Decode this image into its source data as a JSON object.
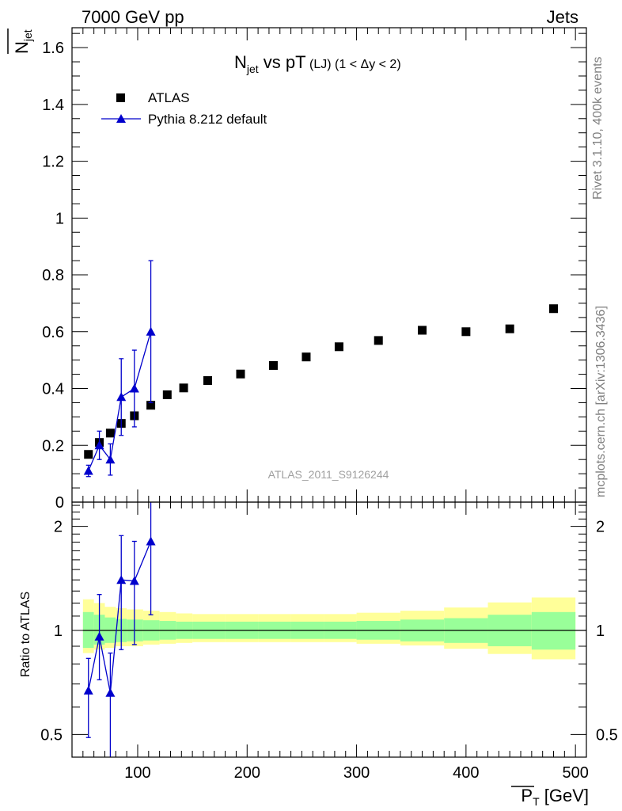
{
  "header": {
    "left": "7000 GeV pp",
    "right": "Jets"
  },
  "side_labels": {
    "rivet": "Rivet 3.1.10,  400k events",
    "mcplots": "mcplots.cern.ch [arXiv:1306.3436]"
  },
  "watermark": "ATLAS_2011_S9126244",
  "colors": {
    "data": "#000000",
    "mc": "#0000cc",
    "band_inner": "#99ff99",
    "band_outer": "#ffff99"
  },
  "chart_data": [
    {
      "type": "scatter",
      "title": "N_jet vs pT (LJ) (1 < Δy < 2)",
      "title_parts": {
        "main": "N",
        "sub": "jet",
        "rest": " vs pT",
        "small": " (LJ) (1 < Δy < 2)"
      },
      "ylabel_parts": {
        "main": "N",
        "sub": "jet"
      },
      "xlim": [
        40,
        510
      ],
      "ylim": [
        0,
        1.67
      ],
      "yticks": [
        0,
        0.2,
        0.4,
        0.6,
        0.8,
        1,
        1.2,
        1.4,
        1.6
      ],
      "ytick_labels": [
        "0",
        "0.2",
        "0.4",
        "0.6",
        "0.8",
        "1",
        "1.2",
        "1.4",
        "1.6"
      ],
      "legend": [
        "ATLAS",
        "Pythia 8.212 default"
      ],
      "series": [
        {
          "name": "ATLAS",
          "marker": "square",
          "x": [
            55,
            65,
            75,
            85,
            97,
            112,
            127,
            142,
            164,
            194,
            224,
            254,
            284,
            320,
            360,
            400,
            440,
            480
          ],
          "y": [
            0.168,
            0.21,
            0.243,
            0.277,
            0.304,
            0.341,
            0.378,
            0.402,
            0.428,
            0.451,
            0.481,
            0.511,
            0.547,
            0.569,
            0.605,
            0.6,
            0.61,
            0.681
          ]
        },
        {
          "name": "Pythia 8.212 default",
          "marker": "triangle",
          "x": [
            55,
            65,
            75,
            85,
            97,
            112
          ],
          "y": [
            0.11,
            0.2,
            0.15,
            0.37,
            0.4,
            0.6
          ],
          "err_low": [
            0.02,
            0.05,
            0.055,
            0.135,
            0.135,
            0.25
          ],
          "err_high": [
            0.02,
            0.05,
            0.055,
            0.135,
            0.135,
            0.25
          ]
        }
      ]
    },
    {
      "type": "scatter",
      "subtype": "ratio",
      "ylabel": "Ratio to ATLAS",
      "xlabel": "P_T [GeV]",
      "xlabel_parts": {
        "main": "P",
        "sub": "T",
        "rest": " [GeV]"
      },
      "xlim": [
        40,
        510
      ],
      "ylim": [
        0.43,
        2.35
      ],
      "yscale": "log",
      "yticks": [
        0.5,
        1,
        2
      ],
      "ytick_labels": [
        "0.5",
        "1",
        "2"
      ],
      "xticks": [
        100,
        200,
        300,
        400,
        500
      ],
      "xtick_labels": [
        "100",
        "200",
        "300",
        "400",
        "500"
      ],
      "bands": {
        "edges": [
          50,
          60,
          70,
          80,
          90,
          105,
          120,
          135,
          150,
          180,
          210,
          240,
          270,
          300,
          340,
          380,
          420,
          460,
          500
        ],
        "inner": [
          [
            0.89,
            1.13
          ],
          [
            0.91,
            1.11
          ],
          [
            0.92,
            1.09
          ],
          [
            0.925,
            1.08
          ],
          [
            0.93,
            1.075
          ],
          [
            0.935,
            1.07
          ],
          [
            0.94,
            1.065
          ],
          [
            0.945,
            1.06
          ],
          [
            0.945,
            1.06
          ],
          [
            0.945,
            1.06
          ],
          [
            0.945,
            1.06
          ],
          [
            0.945,
            1.06
          ],
          [
            0.945,
            1.06
          ],
          [
            0.94,
            1.065
          ],
          [
            0.93,
            1.075
          ],
          [
            0.92,
            1.085
          ],
          [
            0.9,
            1.11
          ],
          [
            0.88,
            1.13
          ]
        ],
        "outer": [
          [
            0.86,
            1.23
          ],
          [
            0.88,
            1.2
          ],
          [
            0.89,
            1.17
          ],
          [
            0.9,
            1.16
          ],
          [
            0.9,
            1.15
          ],
          [
            0.91,
            1.14
          ],
          [
            0.915,
            1.13
          ],
          [
            0.92,
            1.12
          ],
          [
            0.925,
            1.115
          ],
          [
            0.925,
            1.115
          ],
          [
            0.925,
            1.115
          ],
          [
            0.925,
            1.115
          ],
          [
            0.925,
            1.115
          ],
          [
            0.915,
            1.125
          ],
          [
            0.905,
            1.14
          ],
          [
            0.885,
            1.165
          ],
          [
            0.855,
            1.205
          ],
          [
            0.825,
            1.245
          ]
        ]
      },
      "series": [
        {
          "name": "Pythia 8.212 default",
          "marker": "triangle",
          "x": [
            55,
            65,
            75,
            85,
            97,
            112
          ],
          "y": [
            0.67,
            0.96,
            0.66,
            1.4,
            1.39,
            1.81
          ],
          "err_low": [
            0.18,
            0.24,
            0.24,
            0.52,
            0.48,
            0.7
          ],
          "err_high": [
            0.16,
            0.31,
            0.2,
            0.48,
            0.42,
            0.6
          ]
        }
      ]
    }
  ]
}
